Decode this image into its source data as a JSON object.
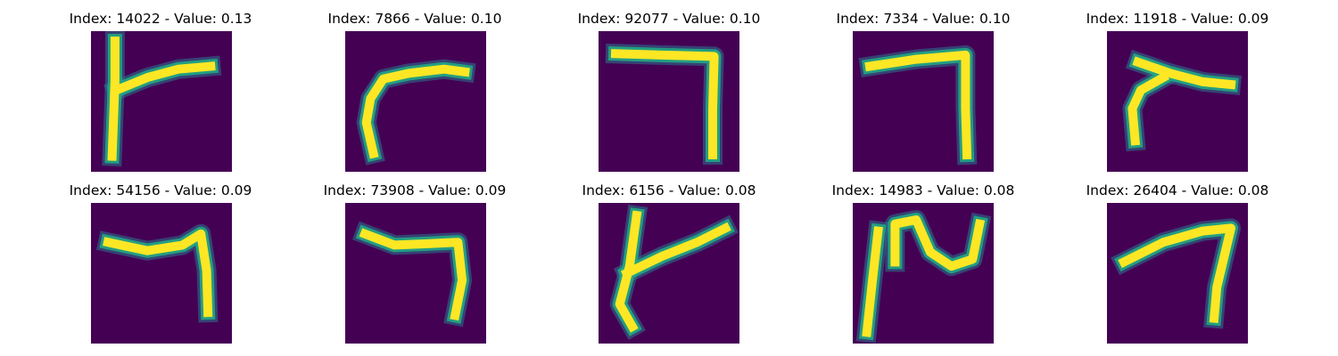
{
  "colors": {
    "background": "#440154",
    "stroke_core": "#fde725",
    "stroke_edge": "#22a884",
    "stroke_halo": "#2a788e"
  },
  "panels": [
    {
      "title": "Index: 14022 - Value: 0.13",
      "strokes": [
        [
          [
            0.17,
            0.07
          ],
          [
            0.17,
            0.35
          ],
          [
            0.16,
            0.62
          ],
          [
            0.15,
            0.89
          ]
        ],
        [
          [
            0.18,
            0.42
          ],
          [
            0.4,
            0.33
          ],
          [
            0.62,
            0.27
          ],
          [
            0.85,
            0.25
          ]
        ]
      ]
    },
    {
      "title": "Index: 7866 - Value: 0.10",
      "strokes": [
        [
          [
            0.2,
            0.87
          ],
          [
            0.15,
            0.65
          ],
          [
            0.18,
            0.48
          ],
          [
            0.27,
            0.34
          ],
          [
            0.45,
            0.3
          ],
          [
            0.7,
            0.27
          ],
          [
            0.85,
            0.29
          ]
        ]
      ]
    },
    {
      "title": "Index: 92077 - Value: 0.10",
      "strokes": [
        [
          [
            0.12,
            0.16
          ],
          [
            0.45,
            0.17
          ],
          [
            0.82,
            0.18
          ],
          [
            0.81,
            0.55
          ],
          [
            0.81,
            0.88
          ]
        ]
      ]
    },
    {
      "title": "Index: 7334 - Value: 0.10",
      "strokes": [
        [
          [
            0.12,
            0.25
          ],
          [
            0.45,
            0.2
          ],
          [
            0.8,
            0.17
          ],
          [
            0.8,
            0.55
          ],
          [
            0.81,
            0.88
          ]
        ]
      ]
    },
    {
      "title": "Index: 11918 - Value: 0.09",
      "strokes": [
        [
          [
            0.2,
            0.78
          ],
          [
            0.18,
            0.55
          ],
          [
            0.24,
            0.42
          ],
          [
            0.4,
            0.33
          ]
        ],
        [
          [
            0.22,
            0.22
          ],
          [
            0.45,
            0.3
          ],
          [
            0.68,
            0.36
          ],
          [
            0.88,
            0.38
          ]
        ]
      ]
    },
    {
      "title": "Index: 54156 - Value: 0.09",
      "strokes": [
        [
          [
            0.12,
            0.28
          ],
          [
            0.4,
            0.34
          ],
          [
            0.65,
            0.3
          ],
          [
            0.78,
            0.22
          ],
          [
            0.82,
            0.48
          ],
          [
            0.83,
            0.78
          ]
        ]
      ]
    },
    {
      "title": "Index: 73908 - Value: 0.09",
      "strokes": [
        [
          [
            0.14,
            0.22
          ],
          [
            0.35,
            0.3
          ],
          [
            0.6,
            0.29
          ],
          [
            0.8,
            0.28
          ],
          [
            0.83,
            0.55
          ],
          [
            0.78,
            0.8
          ]
        ]
      ]
    },
    {
      "title": "Index: 6156 - Value: 0.08",
      "strokes": [
        [
          [
            0.27,
            0.09
          ],
          [
            0.22,
            0.45
          ],
          [
            0.15,
            0.72
          ],
          [
            0.24,
            0.88
          ]
        ],
        [
          [
            0.2,
            0.5
          ],
          [
            0.45,
            0.38
          ],
          [
            0.7,
            0.28
          ],
          [
            0.9,
            0.18
          ]
        ]
      ]
    },
    {
      "title": "Index: 14983 - Value: 0.08",
      "strokes": [
        [
          [
            0.1,
            0.92
          ],
          [
            0.14,
            0.55
          ],
          [
            0.18,
            0.2
          ]
        ],
        [
          [
            0.3,
            0.42
          ],
          [
            0.3,
            0.15
          ],
          [
            0.45,
            0.12
          ],
          [
            0.55,
            0.35
          ],
          [
            0.7,
            0.45
          ],
          [
            0.85,
            0.4
          ],
          [
            0.9,
            0.15
          ]
        ]
      ]
    },
    {
      "title": "Index: 26404 - Value: 0.08",
      "strokes": [
        [
          [
            0.12,
            0.42
          ],
          [
            0.4,
            0.28
          ],
          [
            0.68,
            0.2
          ],
          [
            0.88,
            0.18
          ],
          [
            0.78,
            0.6
          ],
          [
            0.76,
            0.82
          ]
        ]
      ]
    }
  ]
}
